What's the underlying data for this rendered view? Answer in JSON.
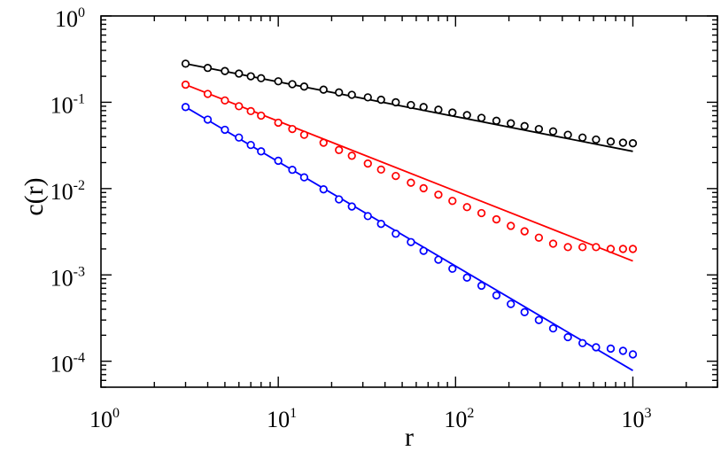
{
  "chart_data": {
    "type": "scatter",
    "title": "",
    "xlabel": "r",
    "ylabel": "c(r)",
    "xscale": "log",
    "yscale": "log",
    "xlim": [
      1,
      3000
    ],
    "ylim": [
      5e-05,
      1
    ],
    "grid": false,
    "legend": "none",
    "x_tick_labels": [
      {
        "value": 1,
        "base": "10",
        "exp": "0"
      },
      {
        "value": 10,
        "base": "10",
        "exp": "1"
      },
      {
        "value": 100,
        "base": "10",
        "exp": "2"
      },
      {
        "value": 1000,
        "base": "10",
        "exp": "3"
      }
    ],
    "y_tick_labels": [
      {
        "value": 1,
        "base": "10",
        "exp": "0"
      },
      {
        "value": 0.1,
        "base": "10",
        "exp": "-1"
      },
      {
        "value": 0.01,
        "base": "10",
        "exp": "-2"
      },
      {
        "value": 0.001,
        "base": "10",
        "exp": "-3"
      },
      {
        "value": 0.0001,
        "base": "10",
        "exp": "-4"
      }
    ],
    "x": [
      3,
      4,
      5,
      6,
      7,
      8,
      10,
      12,
      14,
      18,
      22,
      26,
      32,
      38,
      46,
      56,
      66,
      80,
      96,
      116,
      140,
      170,
      205,
      245,
      295,
      355,
      430,
      520,
      620,
      750,
      880,
      1000
    ],
    "series": [
      {
        "color": "#000000",
        "values": [
          0.28,
          0.25,
          0.23,
          0.215,
          0.2,
          0.19,
          0.175,
          0.162,
          0.152,
          0.14,
          0.13,
          0.122,
          0.114,
          0.107,
          0.1,
          0.093,
          0.088,
          0.082,
          0.076,
          0.071,
          0.066,
          0.061,
          0.057,
          0.053,
          0.049,
          0.046,
          0.042,
          0.039,
          0.037,
          0.035,
          0.034,
          0.0335
        ],
        "fit": {
          "x": [
            3,
            1000
          ],
          "y": [
            0.28,
            0.027
          ]
        }
      },
      {
        "color": "#ff0000",
        "values": [
          0.16,
          0.125,
          0.105,
          0.09,
          0.079,
          0.07,
          0.058,
          0.049,
          0.042,
          0.034,
          0.028,
          0.024,
          0.0195,
          0.0166,
          0.014,
          0.0117,
          0.0101,
          0.0085,
          0.0072,
          0.0061,
          0.0052,
          0.0044,
          0.0037,
          0.0032,
          0.0027,
          0.0023,
          0.0021,
          0.0021,
          0.0021,
          0.002,
          0.002,
          0.002
        ],
        "fit": {
          "x": [
            3,
            1000
          ],
          "y": [
            0.16,
            0.00145
          ]
        }
      },
      {
        "color": "#0000ff",
        "values": [
          0.088,
          0.063,
          0.048,
          0.039,
          0.032,
          0.027,
          0.021,
          0.0165,
          0.0135,
          0.0098,
          0.0075,
          0.0062,
          0.0048,
          0.0039,
          0.003,
          0.0024,
          0.0019,
          0.0015,
          0.00118,
          0.00093,
          0.00075,
          0.00058,
          0.00046,
          0.00037,
          0.0003,
          0.00024,
          0.00019,
          0.000162,
          0.000145,
          0.00014,
          0.000132,
          0.00012
        ],
        "fit": {
          "x": [
            3,
            1000
          ],
          "y": [
            0.088,
            7.8e-05
          ]
        }
      }
    ]
  }
}
